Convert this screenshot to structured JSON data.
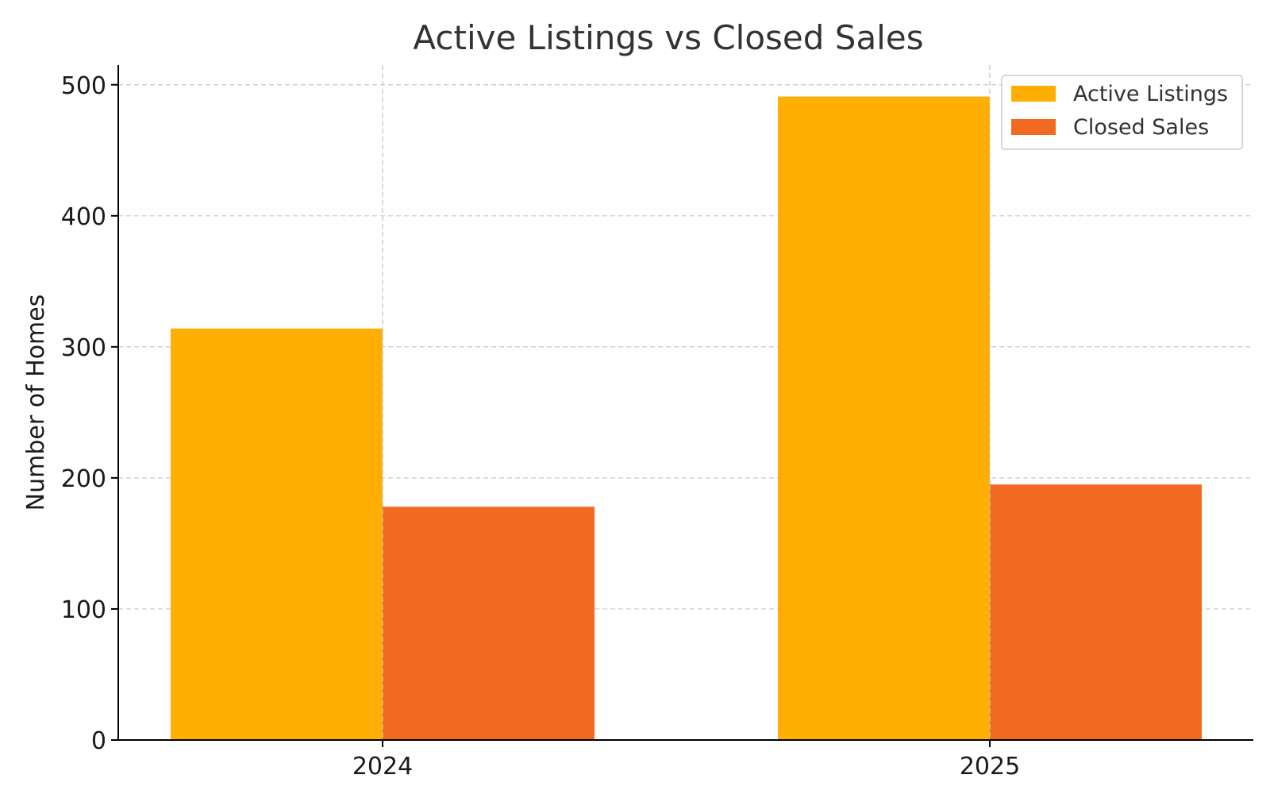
{
  "chart_data": {
    "type": "bar",
    "title": "Active Listings vs Closed Sales",
    "xlabel": "",
    "ylabel": "Number of Homes",
    "categories": [
      "2024",
      "2025"
    ],
    "series": [
      {
        "name": "Active Listings",
        "values": [
          314,
          491
        ],
        "color": "#FFAF03"
      },
      {
        "name": "Closed Sales",
        "values": [
          178,
          195
        ],
        "color": "#F26922"
      }
    ],
    "ylim": [
      0,
      515
    ],
    "yticks": [
      0,
      100,
      200,
      300,
      400,
      500
    ],
    "grid": true,
    "legend_position": "top-right"
  }
}
